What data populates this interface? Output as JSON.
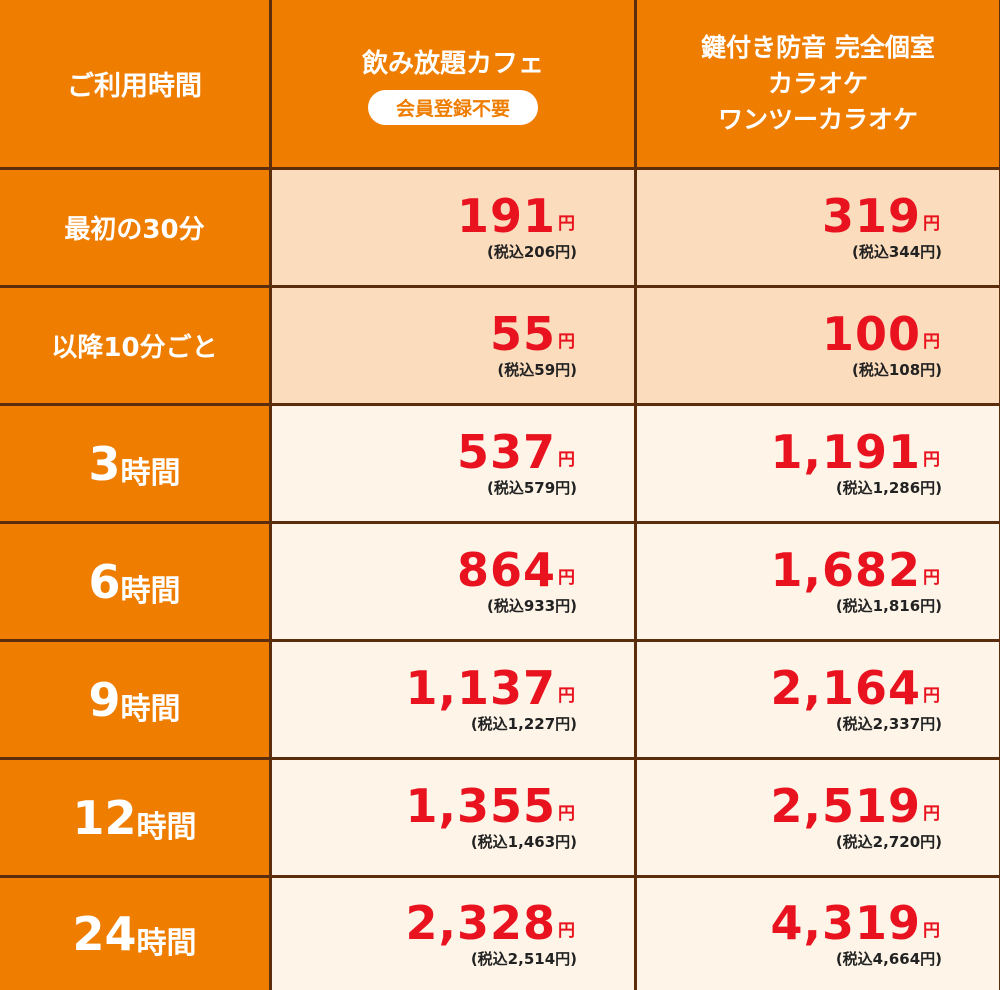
{
  "header": {
    "col0": "ご利用時間",
    "cafe_title": "飲み放題カフェ",
    "cafe_badge": "会員登録不要",
    "karaoke_line1": "鍵付き防音 完全個室",
    "karaoke_line2": "カラオケ",
    "karaoke_line3": "ワンツーカラオケ"
  },
  "currency": "円",
  "rows": [
    {
      "label": "最初の30分",
      "cafe": "191",
      "cafe_tax": "(税込206円)",
      "karaoke": "319",
      "karaoke_tax": "(税込344円)"
    },
    {
      "label": "以降10分ごと",
      "cafe": "55",
      "cafe_tax": "(税込59円)",
      "karaoke": "100",
      "karaoke_tax": "(税込108円)"
    },
    {
      "label_num": "3",
      "label_unit": "時間",
      "cafe": "537",
      "cafe_tax": "(税込579円)",
      "karaoke": "1,191",
      "karaoke_tax": "(税込1,286円)"
    },
    {
      "label_num": "6",
      "label_unit": "時間",
      "cafe": "864",
      "cafe_tax": "(税込933円)",
      "karaoke": "1,682",
      "karaoke_tax": "(税込1,816円)"
    },
    {
      "label_num": "9",
      "label_unit": "時間",
      "cafe": "1,137",
      "cafe_tax": "(税込1,227円)",
      "karaoke": "2,164",
      "karaoke_tax": "(税込2,337円)"
    },
    {
      "label_num": "12",
      "label_unit": "時間",
      "cafe": "1,355",
      "cafe_tax": "(税込1,463円)",
      "karaoke": "2,519",
      "karaoke_tax": "(税込2,720円)"
    },
    {
      "label_num": "24",
      "label_unit": "時間",
      "cafe": "2,328",
      "cafe_tax": "(税込2,514円)",
      "karaoke": "4,319",
      "karaoke_tax": "(税込4,664円)"
    }
  ],
  "colors": {
    "orange": "#ef7d00",
    "peach": "#fbdcbc",
    "cream": "#fef5e8",
    "price_red": "#e8131f",
    "border": "#5b2d0c"
  }
}
